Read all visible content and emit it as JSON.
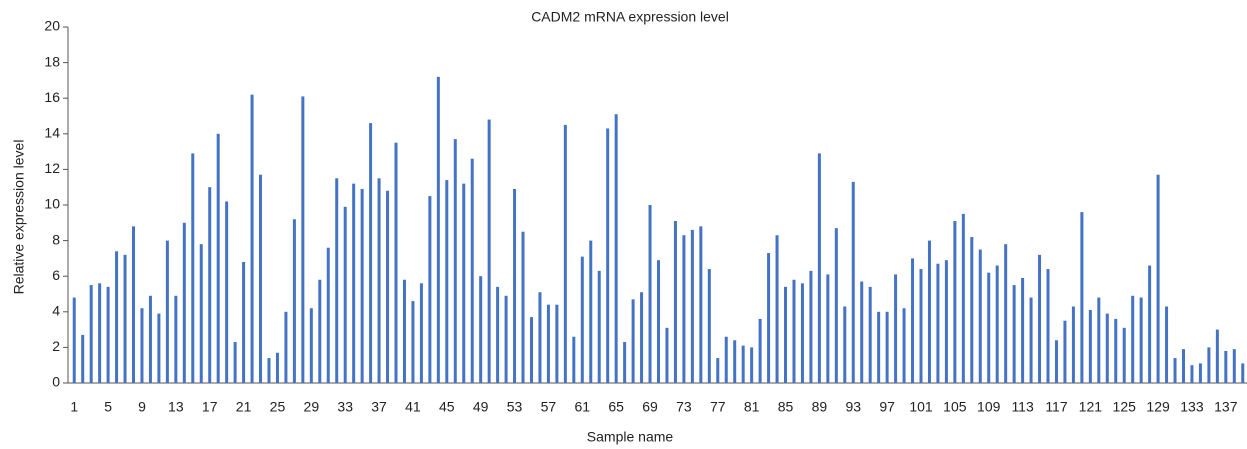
{
  "chart_data": {
    "type": "bar",
    "title": "CADM2 mRNA expression level",
    "x_label": "Sample name",
    "y_label": "Relative expression level",
    "color": "#4472c4",
    "ylim": [
      0,
      20
    ],
    "yticks": [
      0,
      2,
      4,
      6,
      8,
      10,
      12,
      14,
      16,
      18,
      20
    ],
    "grid": false,
    "categories": [
      "1",
      null,
      null,
      null,
      "5",
      null,
      null,
      null,
      "9",
      null,
      null,
      null,
      "13",
      null,
      null,
      null,
      "17",
      null,
      null,
      null,
      "21",
      null,
      null,
      null,
      "25",
      null,
      null,
      null,
      "29",
      null,
      null,
      null,
      "33",
      null,
      null,
      null,
      "37",
      null,
      null,
      null,
      "41",
      null,
      null,
      null,
      "45",
      null,
      null,
      null,
      "49",
      null,
      null,
      null,
      "53",
      null,
      null,
      null,
      "57",
      null,
      null,
      null,
      "61",
      null,
      null,
      null,
      "65",
      null,
      null,
      null,
      "69",
      null,
      null,
      null,
      "73",
      null,
      null,
      null,
      "77",
      null,
      null,
      null,
      "81",
      null,
      null,
      null,
      "85",
      null,
      null,
      null,
      "89",
      null,
      null,
      null,
      "93",
      null,
      null,
      null,
      "97",
      null,
      null,
      null,
      "101",
      null,
      null,
      null,
      "105",
      null,
      null,
      null,
      "109",
      null,
      null,
      null,
      "113",
      null,
      null,
      null,
      "117",
      null,
      null,
      null,
      "121",
      null,
      null,
      null,
      "125",
      null,
      null,
      null,
      "129",
      null,
      null,
      null,
      "133",
      null,
      null,
      null,
      "137",
      null,
      null
    ],
    "values": [
      4.8,
      2.7,
      5.5,
      5.6,
      5.4,
      7.4,
      7.2,
      8.8,
      4.2,
      4.9,
      3.9,
      8.0,
      4.9,
      9.0,
      12.9,
      7.8,
      11.0,
      14.0,
      10.2,
      2.3,
      6.8,
      16.2,
      11.7,
      1.4,
      1.7,
      4.0,
      9.2,
      16.1,
      4.2,
      5.8,
      7.6,
      11.5,
      9.9,
      11.2,
      10.9,
      14.6,
      11.5,
      10.8,
      13.5,
      5.8,
      4.6,
      5.6,
      10.5,
      17.2,
      11.4,
      13.7,
      11.2,
      12.6,
      6.0,
      14.8,
      5.4,
      4.9,
      10.9,
      8.5,
      3.7,
      5.1,
      4.4,
      4.4,
      14.5,
      2.6,
      7.1,
      8.0,
      6.3,
      14.3,
      15.1,
      2.3,
      4.7,
      5.1,
      10.0,
      6.9,
      3.1,
      9.1,
      8.3,
      8.6,
      8.8,
      6.4,
      1.4,
      2.6,
      2.4,
      2.1,
      2.0,
      3.6,
      7.3,
      8.3,
      5.4,
      5.8,
      5.6,
      6.3,
      12.9,
      6.1,
      8.7,
      4.3,
      11.3,
      5.7,
      5.4,
      4.0,
      4.0,
      6.1,
      4.2,
      7.0,
      6.4,
      8.0,
      6.7,
      6.9,
      9.1,
      9.5,
      8.2,
      7.5,
      6.2,
      6.6,
      7.8,
      5.5,
      5.9,
      4.8,
      7.2,
      6.4,
      2.4,
      3.5,
      4.3,
      9.6,
      4.1,
      4.8,
      3.9,
      3.6,
      3.1,
      4.9,
      4.8,
      6.6,
      11.7,
      4.3,
      1.4,
      1.9,
      1.0,
      1.1,
      2.0,
      3.0,
      1.8,
      1.9,
      1.1
    ]
  }
}
